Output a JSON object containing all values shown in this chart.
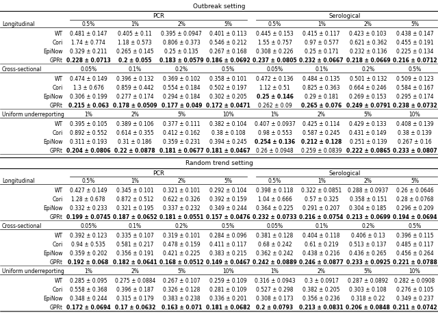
{
  "sections": [
    {
      "setting": "Outbreak setting",
      "subsections": [
        {
          "name": "Longitudinal",
          "pcr_cols": [
            "0.5%",
            "1%",
            "2%",
            "5%"
          ],
          "sero_cols": [
            "0.5%",
            "1%",
            "2%",
            "5%"
          ],
          "rows": [
            {
              "method": "WT",
              "pcr": [
                "0.481 ± 0.147",
                "0.405 ± 0.11",
                "0.395 ± 0.0947",
                "0.401 ± 0.113"
              ],
              "sero": [
                "0.445 ± 0.153",
                "0.415 ± 0.117",
                "0.423 ± 0.103",
                "0.438 ± 0.147"
              ],
              "bold": [
                false,
                false,
                false,
                false,
                false,
                false,
                false,
                false
              ]
            },
            {
              "method": "Cori",
              "pcr": [
                "1.74 ± 0.774",
                "1.18 ± 0.573",
                "0.806 ± 0.373",
                "0.546 ± 0.212"
              ],
              "sero": [
                "1.55 ± 0.757",
                "0.97 ± 0.577",
                "0.621 ± 0.362",
                "0.455 ± 0.191"
              ],
              "bold": [
                false,
                false,
                false,
                false,
                false,
                false,
                false,
                false
              ]
            },
            {
              "method": "EpiNow",
              "pcr": [
                "0.329 ± 0.211",
                "0.265 ± 0.145",
                "0.25 ± 0.135",
                "0.267 ± 0.168"
              ],
              "sero": [
                "0.308 ± 0.226",
                "0.25 ± 0.171",
                "0.232 ± 0.136",
                "0.225 ± 0.134"
              ],
              "bold": [
                false,
                false,
                false,
                false,
                false,
                false,
                false,
                false
              ]
            },
            {
              "method": "GPRt",
              "pcr": [
                "0.228 ± 0.0713",
                "0.2 ± 0.055",
                "0.183 ± 0.0579",
                "0.186 ± 0.0692"
              ],
              "sero": [
                "0.237 ± 0.0805",
                "0.232 ± 0.0667",
                "0.218 ± 0.0669",
                "0.216 ± 0.0712"
              ],
              "bold": [
                true,
                true,
                true,
                true,
                true,
                true,
                true,
                true
              ]
            }
          ]
        },
        {
          "name": "Cross-sectional",
          "pcr_cols": [
            "0.05%",
            "0.1%",
            "0.2%",
            "0.5%"
          ],
          "sero_cols": [
            "0.05%",
            "0.1%",
            "0.2%",
            "0.5%"
          ],
          "rows": [
            {
              "method": "WT",
              "pcr": [
                "0.474 ± 0.149",
                "0.396 ± 0.132",
                "0.369 ± 0.102",
                "0.358 ± 0.101"
              ],
              "sero": [
                "0.472 ± 0.136",
                "0.484 ± 0.135",
                "0.501 ± 0.132",
                "0.509 ± 0.123"
              ],
              "bold": [
                false,
                false,
                false,
                false,
                false,
                false,
                false,
                false
              ]
            },
            {
              "method": "Cori",
              "pcr": [
                "1.3 ± 0.676",
                "0.859 ± 0.442",
                "0.554 ± 0.184",
                "0.502 ± 0.197"
              ],
              "sero": [
                "1.12 ± 0.51",
                "0.825 ± 0.363",
                "0.664 ± 0.246",
                "0.584 ± 0.167"
              ],
              "bold": [
                false,
                false,
                false,
                false,
                false,
                false,
                false,
                false
              ]
            },
            {
              "method": "EpiNow",
              "pcr": [
                "0.306 ± 0.199",
                "0.277 ± 0.174",
                "0.294 ± 0.184",
                "0.302 ± 0.205"
              ],
              "sero": [
                "0.25 ± 0.146",
                "0.29 ± 0.181",
                "0.269 ± 0.153",
                "0.295 ± 0.174"
              ],
              "bold": [
                false,
                false,
                false,
                false,
                true,
                false,
                false,
                false
              ]
            },
            {
              "method": "GPRt",
              "pcr": [
                "0.215 ± 0.063",
                "0.178 ± 0.0509",
                "0.177 ± 0.049",
                "0.172 ± 0.0471"
              ],
              "sero": [
                "0.262 ± 0.09",
                "0.265 ± 0.076",
                "0.249 ± 0.0791",
                "0.238 ± 0.0732"
              ],
              "bold": [
                true,
                true,
                true,
                true,
                false,
                true,
                true,
                true
              ]
            }
          ]
        },
        {
          "name": "Uniform underreporting",
          "pcr_cols": [
            "1%",
            "2%",
            "5%",
            "10%"
          ],
          "sero_cols": [
            "1%",
            "2%",
            "5%",
            "10%"
          ],
          "rows": [
            {
              "method": "WT",
              "pcr": [
                "0.395 ± 0.105",
                "0.389 ± 0.106",
                "0.377 ± 0.111",
                "0.382 ± 0.104"
              ],
              "sero": [
                "0.407 ± 0.0937",
                "0.425 ± 0.114",
                "0.429 ± 0.133",
                "0.408 ± 0.139"
              ],
              "bold": [
                false,
                false,
                false,
                false,
                false,
                false,
                false,
                false
              ]
            },
            {
              "method": "Cori",
              "pcr": [
                "0.892 ± 0.552",
                "0.614 ± 0.355",
                "0.412 ± 0.162",
                "0.38 ± 0.108"
              ],
              "sero": [
                "0.98 ± 0.553",
                "0.587 ± 0.245",
                "0.431 ± 0.149",
                "0.38 ± 0.139"
              ],
              "bold": [
                false,
                false,
                false,
                false,
                false,
                false,
                false,
                false
              ]
            },
            {
              "method": "EpiNow",
              "pcr": [
                "0.311 ± 0.193",
                "0.31 ± 0.186",
                "0.359 ± 0.231",
                "0.394 ± 0.245"
              ],
              "sero": [
                "0.254 ± 0.136",
                "0.212 ± 0.128",
                "0.251 ± 0.139",
                "0.267 ± 0.16"
              ],
              "bold": [
                false,
                false,
                false,
                false,
                true,
                true,
                false,
                false
              ]
            },
            {
              "method": "GPRt",
              "pcr": [
                "0.204 ± 0.0806",
                "0.22 ± 0.0878",
                "0.181 ± 0.0677",
                "0.181 ± 0.0467"
              ],
              "sero": [
                "0.26 ± 0.0948",
                "0.259 ± 0.0839",
                "0.222 ± 0.0865",
                "0.233 ± 0.0807"
              ],
              "bold": [
                true,
                true,
                true,
                true,
                false,
                false,
                true,
                true
              ]
            }
          ]
        }
      ]
    },
    {
      "setting": "Random trend setting",
      "subsections": [
        {
          "name": "Longitudinal",
          "pcr_cols": [
            "0.5%",
            "1%",
            "2%",
            "5%"
          ],
          "sero_cols": [
            "0.5%",
            "1%",
            "2%",
            "5%"
          ],
          "rows": [
            {
              "method": "WT",
              "pcr": [
                "0.427 ± 0.149",
                "0.345 ± 0.101",
                "0.321 ± 0.101",
                "0.292 ± 0.104"
              ],
              "sero": [
                "0.398 ± 0.118",
                "0.322 ± 0.0851",
                "0.288 ± 0.0937",
                "0.26 ± 0.0646"
              ],
              "bold": [
                false,
                false,
                false,
                false,
                false,
                false,
                false,
                false
              ]
            },
            {
              "method": "Cori",
              "pcr": [
                "1.28 ± 0.678",
                "0.872 ± 0.512",
                "0.622 ± 0.326",
                "0.392 ± 0.159"
              ],
              "sero": [
                "1.04 ± 0.666",
                "0.57 ± 0.325",
                "0.358 ± 0.151",
                "0.28 ± 0.0768"
              ],
              "bold": [
                false,
                false,
                false,
                false,
                false,
                false,
                false,
                false
              ]
            },
            {
              "method": "EpiNow",
              "pcr": [
                "0.332 ± 0.233",
                "0.321 ± 0.195",
                "0.337 ± 0.232",
                "0.349 ± 0.244"
              ],
              "sero": [
                "0.364 ± 0.225",
                "0.291 ± 0.207",
                "0.304 ± 0.185",
                "0.296 ± 0.209"
              ],
              "bold": [
                false,
                false,
                false,
                false,
                false,
                false,
                false,
                false
              ]
            },
            {
              "method": "GPRt",
              "pcr": [
                "0.199 ± 0.0745",
                "0.187 ± 0.0652",
                "0.181 ± 0.0551",
                "0.157 ± 0.0476"
              ],
              "sero": [
                "0.232 ± 0.0733",
                "0.216 ± 0.0754",
                "0.213 ± 0.0699",
                "0.194 ± 0.0694"
              ],
              "bold": [
                true,
                true,
                true,
                true,
                true,
                true,
                true,
                true
              ]
            }
          ]
        },
        {
          "name": "Cross-sectional",
          "pcr_cols": [
            "0.05%",
            "0.1%",
            "0.2%",
            "0.5%"
          ],
          "sero_cols": [
            "0.05%",
            "0.1%",
            "0.2%",
            "0.5%"
          ],
          "rows": [
            {
              "method": "WT",
              "pcr": [
                "0.392 ± 0.123",
                "0.335 ± 0.107",
                "0.319 ± 0.101",
                "0.284 ± 0.096"
              ],
              "sero": [
                "0.381 ± 0.128",
                "0.404 ± 0.118",
                "0.406 ± 0.13",
                "0.396 ± 0.115"
              ],
              "bold": [
                false,
                false,
                false,
                false,
                false,
                false,
                false,
                false
              ]
            },
            {
              "method": "Cori",
              "pcr": [
                "0.94 ± 0.535",
                "0.581 ± 0.217",
                "0.478 ± 0.159",
                "0.411 ± 0.117"
              ],
              "sero": [
                "0.68 ± 0.242",
                "0.61 ± 0.219",
                "0.513 ± 0.137",
                "0.485 ± 0.117"
              ],
              "bold": [
                false,
                false,
                false,
                false,
                false,
                false,
                false,
                false
              ]
            },
            {
              "method": "EpiNow",
              "pcr": [
                "0.359 ± 0.202",
                "0.356 ± 0.191",
                "0.421 ± 0.225",
                "0.383 ± 0.215"
              ],
              "sero": [
                "0.362 ± 0.242",
                "0.438 ± 0.216",
                "0.436 ± 0.265",
                "0.456 ± 0.264"
              ],
              "bold": [
                false,
                false,
                false,
                false,
                false,
                false,
                false,
                false
              ]
            },
            {
              "method": "GPRt",
              "pcr": [
                "0.192 ± 0.068",
                "0.182 ± 0.0641",
                "0.168 ± 0.0512",
                "0.149 ± 0.0467"
              ],
              "sero": [
                "0.242 ± 0.0889",
                "0.246 ± 0.0877",
                "0.233 ± 0.0925",
                "0.221 ± 0.0788"
              ],
              "bold": [
                true,
                true,
                true,
                true,
                true,
                true,
                true,
                true
              ]
            }
          ]
        },
        {
          "name": "Uniform underreporting",
          "pcr_cols": [
            "1%",
            "2%",
            "5%",
            "10%"
          ],
          "sero_cols": [
            "1%",
            "2%",
            "5%",
            "10%"
          ],
          "rows": [
            {
              "method": "WT",
              "pcr": [
                "0.285 ± 0.095",
                "0.275 ± 0.0884",
                "0.267 ± 0.107",
                "0.259 ± 0.109"
              ],
              "sero": [
                "0.316 ± 0.0943",
                "0.3 ± 0.0917",
                "0.287 ± 0.0892",
                "0.282 ± 0.0908"
              ],
              "bold": [
                false,
                false,
                false,
                false,
                false,
                false,
                false,
                false
              ]
            },
            {
              "method": "Cori",
              "pcr": [
                "0.558 ± 0.368",
                "0.396 ± 0.187",
                "0.326 ± 0.128",
                "0.281 ± 0.109"
              ],
              "sero": [
                "0.527 ± 0.298",
                "0.382 ± 0.205",
                "0.303 ± 0.108",
                "0.276 ± 0.105"
              ],
              "bold": [
                false,
                false,
                false,
                false,
                false,
                false,
                false,
                false
              ]
            },
            {
              "method": "EpiNow",
              "pcr": [
                "0.348 ± 0.244",
                "0.315 ± 0.179",
                "0.383 ± 0.238",
                "0.336 ± 0.201"
              ],
              "sero": [
                "0.308 ± 0.173",
                "0.356 ± 0.236",
                "0.318 ± 0.22",
                "0.349 ± 0.237"
              ],
              "bold": [
                false,
                false,
                false,
                false,
                false,
                false,
                false,
                false
              ]
            },
            {
              "method": "GPRt",
              "pcr": [
                "0.172 ± 0.0694",
                "0.17 ± 0.0632",
                "0.163 ± 0.071",
                "0.181 ± 0.0682"
              ],
              "sero": [
                "0.2 ± 0.0793",
                "0.213 ± 0.0831",
                "0.206 ± 0.0848",
                "0.211 ± 0.0742"
              ],
              "bold": [
                true,
                true,
                true,
                true,
                true,
                true,
                true,
                true
              ]
            }
          ]
        }
      ]
    }
  ]
}
